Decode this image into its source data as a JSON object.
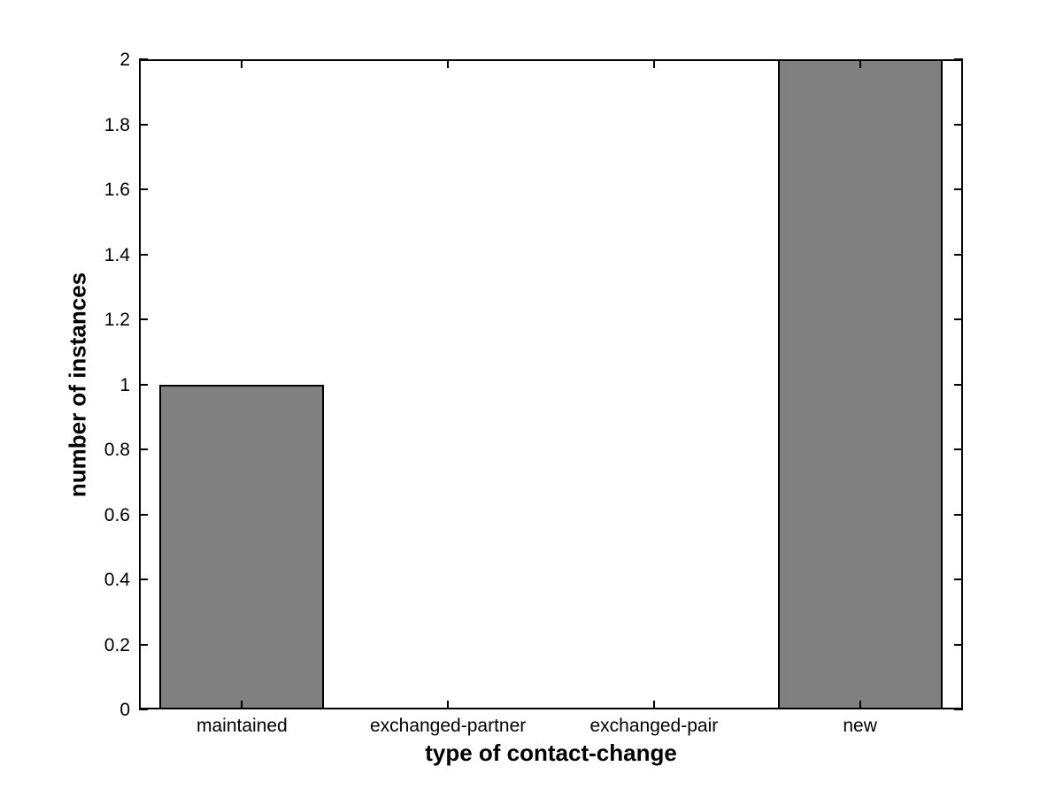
{
  "chart_data": {
    "type": "bar",
    "categories": [
      "maintained",
      "exchanged-partner",
      "exchanged-pair",
      "new"
    ],
    "values": [
      1,
      0,
      0,
      2
    ],
    "title": "",
    "xlabel": "type of contact-change",
    "ylabel": "number of instances",
    "ylim": [
      0,
      2
    ],
    "ytick_step": 0.2,
    "ytick_labels": [
      "0",
      "0.2",
      "0.4",
      "0.6",
      "0.8",
      "1",
      "1.2",
      "1.4",
      "1.6",
      "1.8",
      "2"
    ],
    "bar_width_fraction": 0.8,
    "bar_color": "#808080",
    "bar_edge_color": "#000000",
    "axis_color": "#000000",
    "background_color": "#ffffff",
    "grid": false,
    "legend": null,
    "tick_direction": "in",
    "box": true
  }
}
